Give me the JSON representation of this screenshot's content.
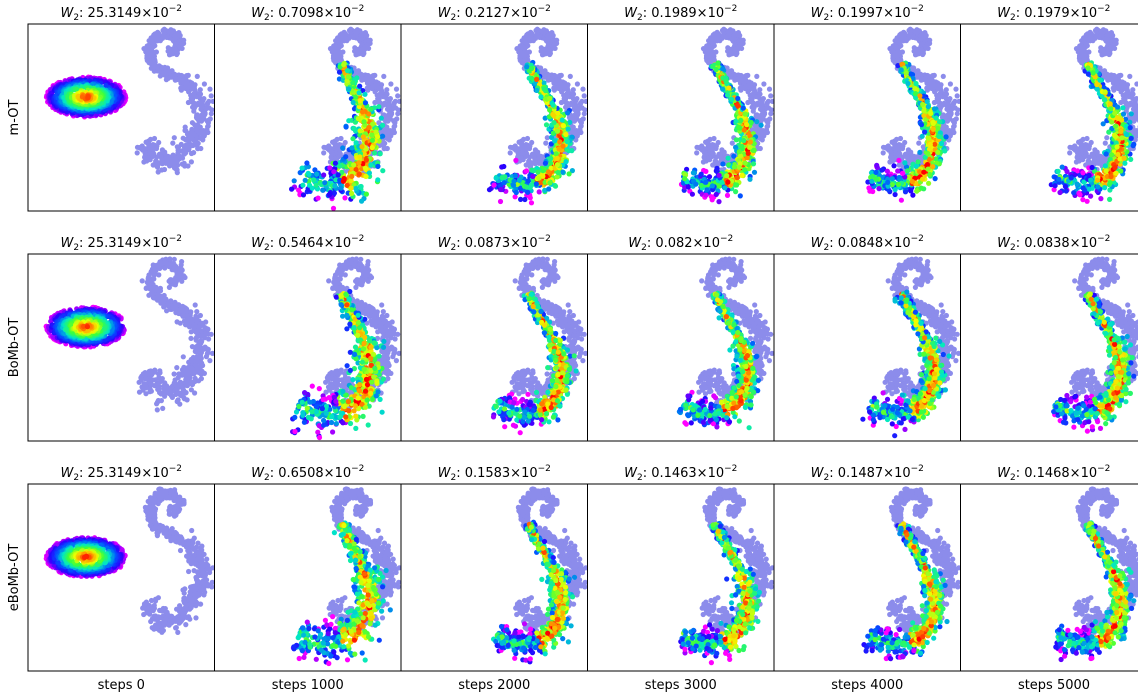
{
  "figure": {
    "row_labels": [
      "m-OT",
      "BoMb-OT",
      "eBoMb-OT"
    ],
    "column_labels": [
      "steps 0",
      "steps 1000",
      "steps 2000",
      "steps 3000",
      "steps 4000",
      "steps 5000"
    ],
    "metric_symbol": "W",
    "metric_subscript": "2",
    "multiplier_text": "×10",
    "exponent_text": "−2",
    "target_color": "#8c8ceb"
  },
  "chart_data": {
    "type": "scatter",
    "grid": false,
    "rows": [
      {
        "method": "m-OT",
        "panels": [
          {
            "step": 0,
            "w2_value": "25.3149"
          },
          {
            "step": 1000,
            "w2_value": "0.7098"
          },
          {
            "step": 2000,
            "w2_value": "0.2127"
          },
          {
            "step": 3000,
            "w2_value": "0.1989"
          },
          {
            "step": 4000,
            "w2_value": "0.1997"
          },
          {
            "step": 5000,
            "w2_value": "0.1979"
          }
        ]
      },
      {
        "method": "BoMb-OT",
        "panels": [
          {
            "step": 0,
            "w2_value": "25.3149"
          },
          {
            "step": 1000,
            "w2_value": "0.5464"
          },
          {
            "step": 2000,
            "w2_value": "0.0873"
          },
          {
            "step": 3000,
            "w2_value": "0.082"
          },
          {
            "step": 4000,
            "w2_value": "0.0848"
          },
          {
            "step": 5000,
            "w2_value": "0.0838"
          }
        ]
      },
      {
        "method": "eBoMb-OT",
        "panels": [
          {
            "step": 0,
            "w2_value": "25.3149"
          },
          {
            "step": 1000,
            "w2_value": "0.6508"
          },
          {
            "step": 2000,
            "w2_value": "0.1583"
          },
          {
            "step": 3000,
            "w2_value": "0.1463"
          },
          {
            "step": 4000,
            "w2_value": "0.1487"
          },
          {
            "step": 5000,
            "w2_value": "0.1468"
          }
        ]
      }
    ]
  }
}
